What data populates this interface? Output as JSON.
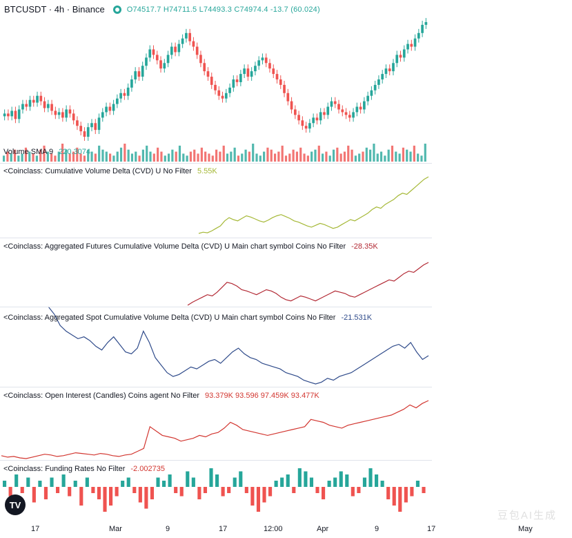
{
  "header": {
    "symbol": "BTCUSDT · 4h · Binance",
    "ohlc": "O74517.7 H74711.5 L74493.3 C74974.4 -13.7 (60.024)"
  },
  "panels": {
    "volume": {
      "label": "Volume SMA 9",
      "value": "220.3074"
    },
    "cvd": {
      "label": "<Coinclass: Cumulative Volume Delta (CVD) U No Filter",
      "value": "5.55K",
      "color": "#a5b836"
    },
    "fcvd": {
      "label": "<Coinclass: Aggregated Futures Cumulative Volume Delta (CVD) U Main chart symbol Coins No Filter",
      "value": "-28.35K",
      "color": "#b22833"
    },
    "scvd": {
      "label": "<Coinclass: Aggregated Spot Cumulative Volume Delta (CVD) U Main chart symbol Coins No Filter",
      "value": "-21.531K",
      "color": "#2e4a8a"
    },
    "oi": {
      "label": "<Coinclass: Open Interest (Candles) Coins agent No Filter",
      "value": "93.379K 93.596 97.459K 93.477K",
      "color": "#d2352f"
    },
    "funding": {
      "label": "<Coinclass: Funding Rates No Filter",
      "value": "-2.002735",
      "color": "#d2352f"
    }
  },
  "xaxis": [
    "17",
    "Mar",
    "9",
    "17",
    "12:00",
    "Apr",
    "9",
    "17",
    "May"
  ],
  "logo": "TV",
  "watermark": "豆包AI生成",
  "colors": {
    "up": "#26a69a",
    "down": "#ef5350"
  },
  "chart_data": [
    {
      "type": "candlestick",
      "name": "BTCUSDT",
      "close": [
        45,
        43,
        47,
        41,
        48,
        52,
        50,
        55,
        53,
        58,
        54,
        49,
        52,
        47,
        44,
        46,
        42,
        48,
        45,
        40,
        36,
        32,
        28,
        35,
        38,
        33,
        42,
        46,
        50,
        47,
        52,
        56,
        60,
        58,
        64,
        70,
        76,
        72,
        80,
        86,
        92,
        88,
        84,
        78,
        82,
        88,
        94,
        90,
        96,
        100,
        104,
        98,
        94,
        88,
        82,
        76,
        72,
        66,
        62,
        58,
        56,
        60,
        64,
        70,
        68,
        74,
        78,
        72,
        76,
        80,
        84,
        86,
        82,
        78,
        74,
        70,
        66,
        60,
        54,
        48,
        44,
        40,
        36,
        34,
        38,
        42,
        40,
        46,
        44,
        50,
        54,
        52,
        48,
        46,
        44,
        42,
        46,
        50,
        48,
        54,
        58,
        62,
        66,
        70,
        74,
        78,
        76,
        82,
        88,
        86,
        92,
        96,
        94,
        100,
        104,
        110,
        112
      ]
    },
    {
      "type": "bar",
      "name": "Volume",
      "values": [
        3,
        5,
        4,
        6,
        3,
        4,
        7,
        5,
        4,
        3,
        6,
        8,
        5,
        4,
        3,
        5,
        9,
        6,
        4,
        5,
        7,
        4,
        3,
        6,
        5,
        4,
        8,
        6,
        5,
        4,
        3,
        5,
        7,
        9,
        6,
        4,
        5,
        3,
        6,
        8,
        5,
        4,
        7,
        5,
        3,
        4,
        6,
        5,
        8,
        4,
        3,
        5,
        6,
        4,
        7,
        5,
        4,
        3,
        6,
        5,
        8,
        4,
        5,
        7,
        3,
        4,
        6,
        5,
        9,
        4,
        3,
        5,
        7,
        6,
        4,
        5,
        8,
        3,
        4,
        6,
        5,
        7,
        4,
        3,
        5,
        6,
        8,
        4,
        5,
        3,
        6,
        7,
        4,
        5,
        8,
        6,
        3,
        4,
        5,
        7,
        6,
        9,
        4,
        5,
        3,
        6,
        8,
        5,
        4,
        7,
        6,
        5,
        8,
        4,
        3,
        9
      ]
    },
    {
      "type": "line",
      "name": "CVD",
      "values": [
        10,
        12,
        11,
        14,
        18,
        22,
        30,
        35,
        32,
        30,
        34,
        38,
        36,
        33,
        30,
        28,
        31,
        35,
        38,
        40,
        37,
        34,
        30,
        28,
        25,
        22,
        20,
        23,
        26,
        24,
        21,
        18,
        20,
        24,
        28,
        32,
        30,
        34,
        38,
        42,
        48,
        52,
        50,
        56,
        60,
        64,
        70,
        74,
        72,
        78,
        84,
        90,
        96,
        100
      ]
    },
    {
      "type": "line",
      "name": "Futures CVD",
      "values": [
        5,
        10,
        14,
        18,
        22,
        20,
        26,
        34,
        42,
        40,
        36,
        30,
        28,
        25,
        22,
        26,
        30,
        28,
        24,
        18,
        14,
        12,
        16,
        20,
        18,
        15,
        12,
        16,
        20,
        24,
        28,
        26,
        24,
        20,
        18,
        22,
        26,
        30,
        34,
        38,
        42,
        46,
        44,
        50,
        56,
        60,
        58,
        64,
        70,
        74
      ]
    },
    {
      "type": "line",
      "name": "Spot CVD",
      "values": [
        100,
        92,
        80,
        74,
        70,
        66,
        68,
        64,
        58,
        54,
        62,
        68,
        60,
        52,
        50,
        56,
        74,
        62,
        46,
        38,
        30,
        26,
        28,
        32,
        36,
        34,
        38,
        42,
        44,
        40,
        46,
        52,
        56,
        50,
        46,
        44,
        40,
        38,
        36,
        34,
        30,
        28,
        26,
        22,
        20,
        18,
        20,
        24,
        22,
        26,
        28,
        30,
        34,
        38,
        42,
        46,
        50,
        54,
        58,
        60,
        56,
        62,
        52,
        44,
        48
      ]
    },
    {
      "type": "line",
      "name": "Open Interest",
      "values": [
        10,
        8,
        9,
        7,
        6,
        8,
        10,
        12,
        11,
        9,
        10,
        12,
        14,
        13,
        12,
        11,
        13,
        12,
        10,
        9,
        11,
        12,
        16,
        20,
        50,
        44,
        38,
        36,
        34,
        30,
        32,
        34,
        38,
        36,
        40,
        42,
        48,
        56,
        52,
        46,
        44,
        42,
        40,
        38,
        40,
        42,
        44,
        46,
        48,
        50,
        60,
        58,
        56,
        52,
        50,
        48,
        52,
        54,
        56,
        58,
        60,
        62,
        64,
        66,
        70,
        74,
        80,
        76,
        82,
        86
      ]
    },
    {
      "type": "bar",
      "name": "Funding Rates",
      "values": [
        2,
        -3,
        4,
        -2,
        3,
        -5,
        2,
        -4,
        3,
        -2,
        4,
        -3,
        2,
        -6,
        3,
        -2,
        -4,
        -8,
        -6,
        -3,
        2,
        3,
        -2,
        -5,
        -7,
        -4,
        3,
        2,
        4,
        -2,
        -3,
        5,
        3,
        -4,
        -2,
        6,
        4,
        -3,
        -2,
        3,
        5,
        -2,
        -6,
        -8,
        -5,
        -3,
        2,
        3,
        4,
        -2,
        6,
        5,
        3,
        -2,
        -4,
        2,
        3,
        5,
        4,
        -3,
        -2,
        3,
        6,
        4,
        2,
        -4,
        -6,
        -8,
        -5,
        -3,
        2,
        -2
      ]
    }
  ]
}
